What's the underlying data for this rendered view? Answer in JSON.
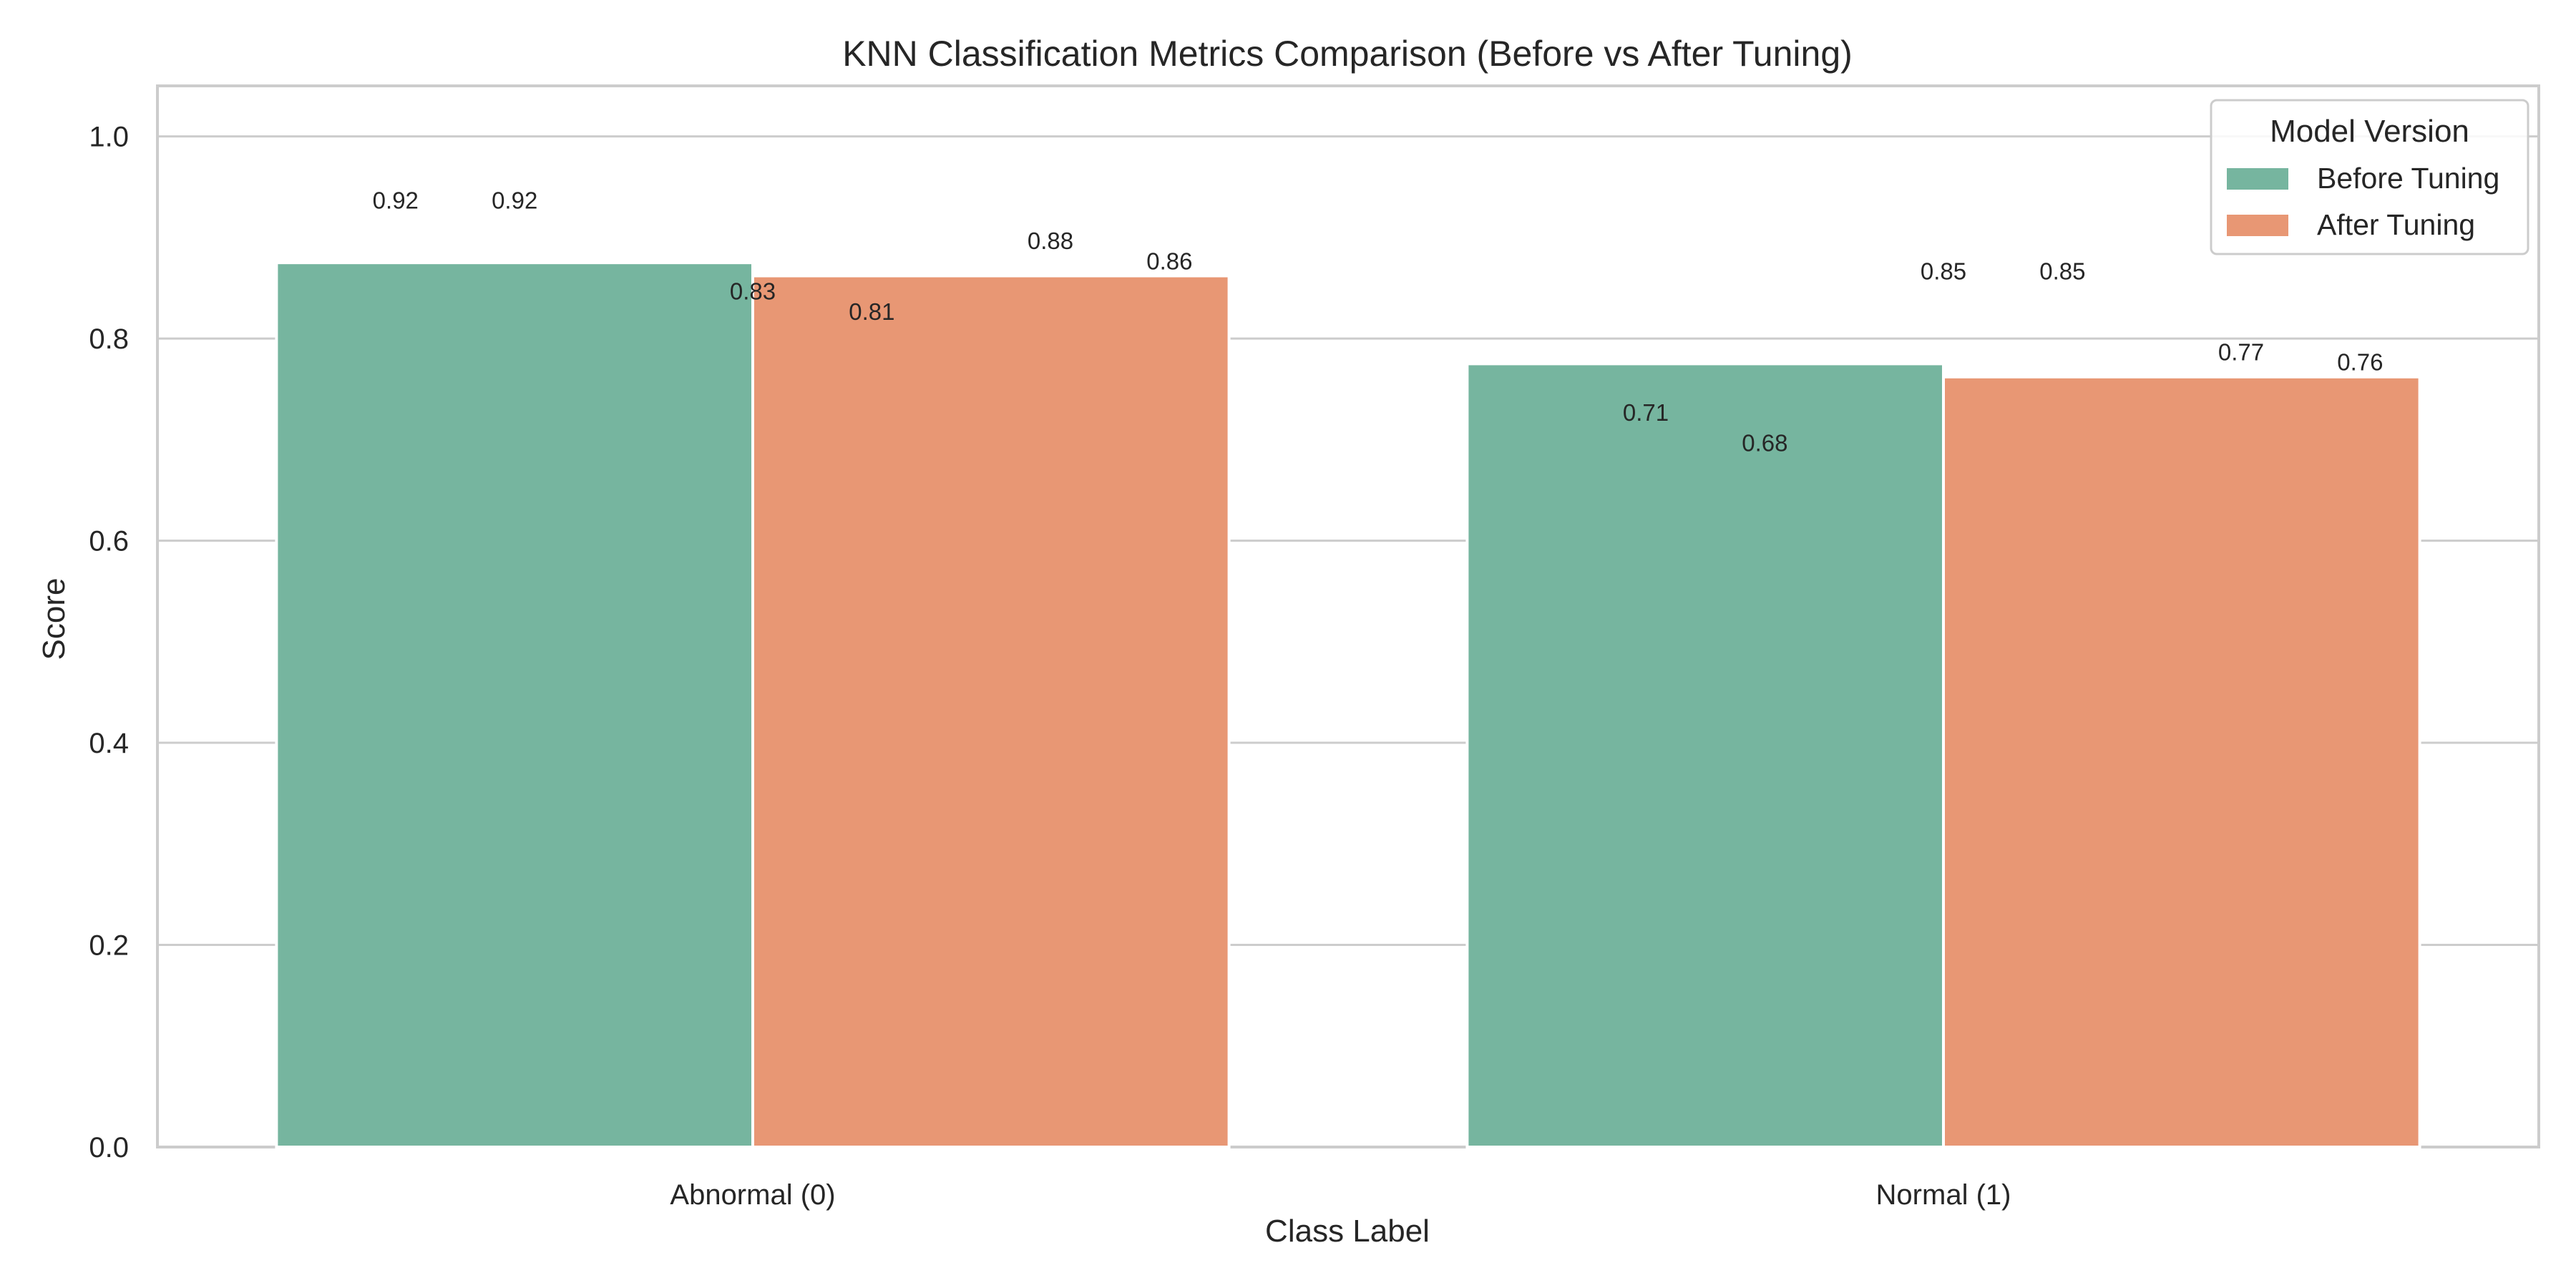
{
  "chart_data": {
    "type": "bar",
    "title": "KNN Classification Metrics Comparison (Before vs After Tuning)",
    "xlabel": "Class Label",
    "ylabel": "Score",
    "ylim": [
      0,
      1.05
    ],
    "yticks": [
      "0.0",
      "0.2",
      "0.4",
      "0.6",
      "0.8",
      "1.0"
    ],
    "grid": true,
    "categories": [
      "Abnormal (0)",
      "Normal (1)"
    ],
    "series": [
      {
        "name": "Before Tuning",
        "color": "#76b59f",
        "values": [
          0.875,
          0.775
        ]
      },
      {
        "name": "After Tuning",
        "color": "#e89774",
        "values": [
          0.862,
          0.762
        ]
      }
    ],
    "legend": {
      "title": "Model Version",
      "placement": "top-right"
    },
    "annotations": [
      {
        "text": "0.92",
        "x": -0.3,
        "y": 0.92
      },
      {
        "text": "0.92",
        "x": -0.2,
        "y": 0.92
      },
      {
        "text": "0.83",
        "x": 0.0,
        "y": 0.83
      },
      {
        "text": "0.81",
        "x": 0.1,
        "y": 0.81
      },
      {
        "text": "0.88",
        "x": 0.25,
        "y": 0.88
      },
      {
        "text": "0.86",
        "x": 0.35,
        "y": 0.86
      },
      {
        "text": "0.71",
        "x": 0.75,
        "y": 0.71
      },
      {
        "text": "0.68",
        "x": 0.85,
        "y": 0.68
      },
      {
        "text": "0.85",
        "x": 1.0,
        "y": 0.85
      },
      {
        "text": "0.85",
        "x": 1.1,
        "y": 0.85
      },
      {
        "text": "0.77",
        "x": 1.25,
        "y": 0.77
      },
      {
        "text": "0.76",
        "x": 1.35,
        "y": 0.76
      }
    ]
  }
}
